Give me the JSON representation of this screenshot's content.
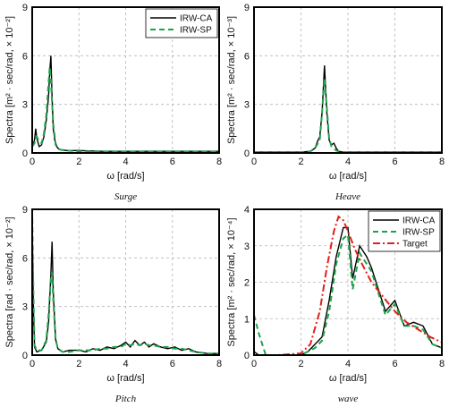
{
  "chart_data": [
    {
      "id": "surge",
      "type": "line",
      "caption": "Surge",
      "xlabel": "ω [rad/s]",
      "ylabel": "Spectra [m² · sec/rad, × 10⁻²]",
      "xlim": [
        0,
        8
      ],
      "ylim": [
        0,
        9
      ],
      "xticks": [
        "0",
        "2",
        "4",
        "6",
        "8"
      ],
      "yticks": [
        "0",
        "3",
        "6",
        "9"
      ],
      "xtick_values": [
        0,
        2,
        4,
        6,
        8
      ],
      "ytick_values": [
        0,
        3,
        6,
        9
      ],
      "grid": true,
      "legend_position": "top-right",
      "series": [
        {
          "name": "IRW-CA",
          "color": "#000000",
          "style": "solid",
          "x": [
            0,
            0.1,
            0.15,
            0.2,
            0.3,
            0.4,
            0.5,
            0.6,
            0.7,
            0.75,
            0.8,
            0.85,
            0.9,
            1.0,
            1.1,
            1.2,
            1.5,
            2.0,
            3.0,
            4.0,
            5.0,
            6.0,
            7.0,
            8.0
          ],
          "y": [
            0.3,
            0.8,
            1.5,
            0.9,
            0.4,
            0.5,
            1.0,
            2.0,
            3.5,
            5.0,
            6.0,
            3.5,
            1.5,
            0.5,
            0.3,
            0.2,
            0.15,
            0.15,
            0.1,
            0.1,
            0.1,
            0.1,
            0.1,
            0.1
          ]
        },
        {
          "name": "IRW-SP",
          "color": "#1ca34a",
          "style": "dashed",
          "x": [
            0,
            0.1,
            0.2,
            0.3,
            0.4,
            0.5,
            0.6,
            0.7,
            0.75,
            0.8,
            0.9,
            1.0,
            1.1,
            1.2,
            1.5,
            2.0,
            3.0,
            4.0,
            5.0,
            6.0,
            7.0,
            8.0
          ],
          "y": [
            0.4,
            0.6,
            1.0,
            0.7,
            0.6,
            1.2,
            2.3,
            4.3,
            5.3,
            4.5,
            1.8,
            0.6,
            0.3,
            0.2,
            0.15,
            0.1,
            0.1,
            0.1,
            0.1,
            0.1,
            0.1,
            0.1
          ]
        }
      ]
    },
    {
      "id": "heave",
      "type": "line",
      "caption": "Heave",
      "xlabel": "ω [rad/s]",
      "ylabel": "Spectra [m² · sec/rad, × 10⁻³]",
      "xlim": [
        0,
        8
      ],
      "ylim": [
        0,
        9
      ],
      "xticks": [
        "0",
        "2",
        "4",
        "6",
        "8"
      ],
      "yticks": [
        "0",
        "3",
        "6",
        "9"
      ],
      "xtick_values": [
        0,
        2,
        4,
        6,
        8
      ],
      "ytick_values": [
        0,
        3,
        6,
        9
      ],
      "grid": true,
      "series": [
        {
          "name": "IRW-CA",
          "color": "#000000",
          "style": "solid",
          "x": [
            0,
            2.0,
            2.4,
            2.6,
            2.7,
            2.8,
            2.9,
            3.0,
            3.1,
            3.2,
            3.3,
            3.4,
            3.5,
            3.6,
            3.8,
            4.0,
            8.0
          ],
          "y": [
            0.05,
            0.05,
            0.1,
            0.3,
            0.7,
            1.0,
            2.5,
            5.4,
            2.5,
            0.8,
            0.5,
            0.6,
            0.3,
            0.1,
            0.05,
            0.05,
            0.05
          ]
        },
        {
          "name": "IRW-SP",
          "color": "#1ca34a",
          "style": "dashed",
          "x": [
            0,
            2.0,
            2.4,
            2.6,
            2.8,
            2.9,
            3.0,
            3.1,
            3.2,
            3.3,
            3.5,
            3.7,
            4.0,
            8.0
          ],
          "y": [
            0.05,
            0.05,
            0.1,
            0.3,
            0.8,
            2.5,
            4.6,
            2.8,
            0.9,
            0.4,
            0.15,
            0.05,
            0.05,
            0.05
          ]
        }
      ]
    },
    {
      "id": "pitch",
      "type": "line",
      "caption": "Pitch",
      "xlabel": "ω [rad/s]",
      "ylabel": "Spectra [rad · sec/rad, × 10⁻²]",
      "xlim": [
        0,
        8
      ],
      "ylim": [
        0,
        9
      ],
      "xticks": [
        "0",
        "2",
        "4",
        "6",
        "8"
      ],
      "yticks": [
        "0",
        "3",
        "6",
        "9"
      ],
      "xtick_values": [
        0,
        2,
        4,
        6,
        8
      ],
      "ytick_values": [
        0,
        3,
        6,
        9
      ],
      "grid": true,
      "series": [
        {
          "name": "IRW-CA",
          "color": "#000000",
          "style": "solid",
          "x": [
            0,
            0.05,
            0.1,
            0.2,
            0.4,
            0.6,
            0.7,
            0.8,
            0.85,
            0.9,
            1.0,
            1.1,
            1.3,
            1.6,
            2.0,
            2.3,
            2.6,
            2.9,
            3.2,
            3.5,
            3.8,
            4.0,
            4.2,
            4.4,
            4.6,
            4.8,
            5.0,
            5.2,
            5.5,
            5.8,
            6.1,
            6.4,
            6.7,
            7.0,
            7.5,
            8.0
          ],
          "y": [
            8.5,
            3.0,
            0.5,
            0.2,
            0.3,
            0.8,
            2.0,
            5.0,
            7.0,
            4.0,
            1.0,
            0.4,
            0.2,
            0.3,
            0.3,
            0.2,
            0.4,
            0.3,
            0.5,
            0.4,
            0.6,
            0.8,
            0.5,
            0.9,
            0.6,
            0.8,
            0.5,
            0.7,
            0.5,
            0.4,
            0.5,
            0.3,
            0.4,
            0.2,
            0.1,
            0.1
          ]
        },
        {
          "name": "IRW-SP",
          "color": "#1ca34a",
          "style": "dashed",
          "x": [
            0,
            0.05,
            0.1,
            0.2,
            0.4,
            0.6,
            0.7,
            0.8,
            0.85,
            0.9,
            1.0,
            1.1,
            1.3,
            1.6,
            2.0,
            2.3,
            2.6,
            2.9,
            3.2,
            3.5,
            3.8,
            4.0,
            4.2,
            4.4,
            4.6,
            4.8,
            5.0,
            5.2,
            5.5,
            5.8,
            6.1,
            6.4,
            6.7,
            7.0,
            7.5,
            8.0
          ],
          "y": [
            9.0,
            4.0,
            0.6,
            0.3,
            0.3,
            0.9,
            2.5,
            4.8,
            5.1,
            3.5,
            1.0,
            0.4,
            0.2,
            0.2,
            0.3,
            0.3,
            0.3,
            0.4,
            0.4,
            0.5,
            0.5,
            0.7,
            0.6,
            0.7,
            0.6,
            0.7,
            0.6,
            0.6,
            0.5,
            0.5,
            0.4,
            0.4,
            0.3,
            0.2,
            0.1,
            0.1
          ]
        }
      ]
    },
    {
      "id": "wave",
      "type": "line",
      "caption": "wave",
      "xlabel": "ω [rad/s]",
      "ylabel": "Spectra [m² · sec/rad, × 10⁻⁴]",
      "xlim": [
        0,
        8
      ],
      "ylim": [
        0,
        4
      ],
      "xticks": [
        "0",
        "2",
        "4",
        "6",
        "8"
      ],
      "yticks": [
        "0",
        "1",
        "2",
        "3",
        "4"
      ],
      "xtick_values": [
        0,
        2,
        4,
        6,
        8
      ],
      "ytick_values": [
        0,
        1,
        2,
        3,
        4
      ],
      "grid": true,
      "legend_position": "top-right",
      "series": [
        {
          "name": "IRW-CA",
          "color": "#000000",
          "style": "solid",
          "x": [
            0,
            0.2,
            0.5,
            1.0,
            1.5,
            2.0,
            2.3,
            2.6,
            2.9,
            3.2,
            3.5,
            3.8,
            4.0,
            4.2,
            4.5,
            4.8,
            5.0,
            5.3,
            5.6,
            6.0,
            6.4,
            6.8,
            7.2,
            7.6,
            8.0
          ],
          "y": [
            0.1,
            0.0,
            0.0,
            0.0,
            0.0,
            0.0,
            0.1,
            0.3,
            0.5,
            1.5,
            2.7,
            3.5,
            3.5,
            2.1,
            3.0,
            2.7,
            2.4,
            1.8,
            1.2,
            1.5,
            0.8,
            0.9,
            0.8,
            0.3,
            0.2
          ]
        },
        {
          "name": "IRW-SP",
          "color": "#1ca34a",
          "style": "dashed",
          "x": [
            0,
            0.2,
            0.5,
            1.0,
            1.5,
            2.0,
            2.3,
            2.6,
            2.9,
            3.2,
            3.5,
            3.8,
            4.0,
            4.2,
            4.5,
            4.8,
            5.0,
            5.3,
            5.6,
            6.0,
            6.4,
            6.8,
            7.2,
            7.6,
            8.0
          ],
          "y": [
            1.1,
            0.6,
            0.0,
            0.0,
            0.0,
            0.0,
            0.1,
            0.2,
            0.4,
            1.2,
            2.5,
            3.2,
            3.3,
            1.8,
            2.8,
            2.5,
            2.3,
            1.7,
            1.1,
            1.4,
            0.8,
            0.8,
            0.7,
            0.3,
            0.2
          ]
        },
        {
          "name": "Target",
          "color": "#e0201c",
          "style": "dashdot",
          "x": [
            0,
            1.0,
            2.0,
            2.4,
            2.8,
            3.1,
            3.4,
            3.6,
            3.8,
            4.0,
            4.3,
            4.6,
            5.0,
            5.5,
            6.0,
            6.5,
            7.0,
            7.5,
            8.0
          ],
          "y": [
            0.0,
            0.0,
            0.05,
            0.3,
            1.2,
            2.4,
            3.4,
            3.8,
            3.7,
            3.4,
            2.9,
            2.5,
            2.0,
            1.6,
            1.2,
            0.9,
            0.7,
            0.5,
            0.35
          ]
        }
      ]
    }
  ]
}
